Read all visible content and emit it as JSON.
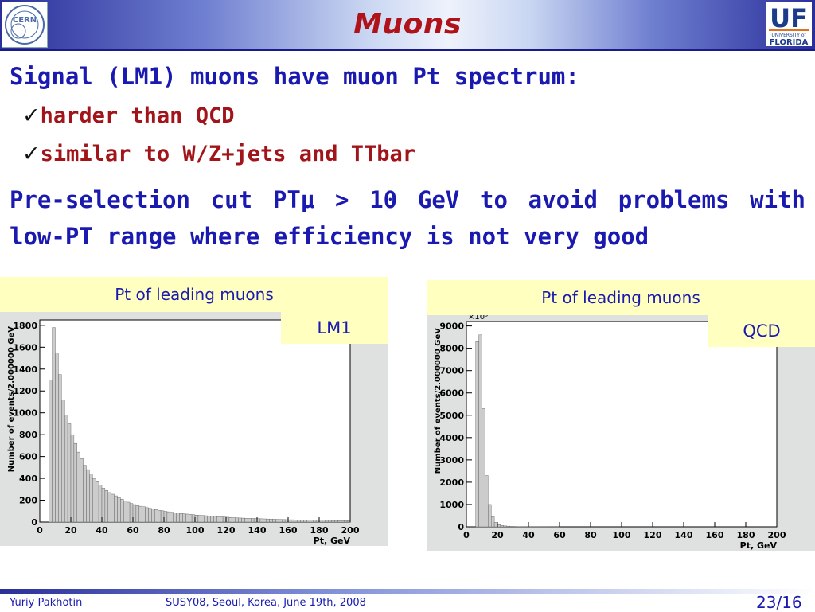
{
  "slide": {
    "title": "Muons",
    "line1": "Signal (LM1) muons have muon Pt spectrum:",
    "bullet1": "harder than QCD",
    "bullet2": "similar to W/Z+jets and TTbar",
    "paragraph": "Pre-selection cut PTμ > 10 GeV to avoid problems with low-PT range where efficiency is not very good",
    "check_glyph": "✓"
  },
  "logos": {
    "left": "CERN",
    "right_main": "UF",
    "right_sub1": "UNIVERSITY of",
    "right_sub2": "FLORIDA"
  },
  "footer": {
    "author": "Yuriy Pakhotin",
    "conference": "SUSY08, Seoul, Korea, June 19th, 2008",
    "page": "23/16"
  },
  "colors": {
    "title": "#b0121a",
    "text_blue": "#1a1ab0",
    "highlight": "#ffffc0",
    "plot_bg": "#dfe0e0",
    "hist_fill": "#cccccc"
  },
  "chart_data": [
    {
      "type": "bar",
      "panel_title": "Pt of leading muons",
      "tag": "LM1",
      "xlabel": "Pt, GeV",
      "ylabel": "Number of events/2.000000 GeV",
      "xlim": [
        0,
        200
      ],
      "ylim": [
        0,
        1850
      ],
      "xticks": [
        0,
        20,
        40,
        60,
        80,
        100,
        120,
        140,
        160,
        180,
        200
      ],
      "yticks": [
        0,
        200,
        400,
        600,
        800,
        1000,
        1200,
        1400,
        1600,
        1800
      ],
      "ytick_labels": [
        "0",
        "200",
        "400",
        "600",
        "800",
        "1000",
        "1200",
        "1400",
        "1600",
        "1800"
      ],
      "bin_width": 2,
      "values": [
        0,
        0,
        0,
        1300,
        1780,
        1550,
        1350,
        1120,
        980,
        900,
        800,
        720,
        640,
        580,
        520,
        480,
        440,
        400,
        370,
        340,
        310,
        290,
        270,
        255,
        240,
        225,
        210,
        195,
        182,
        170,
        160,
        152,
        145,
        140,
        132,
        126,
        120,
        114,
        108,
        103,
        98,
        94,
        90,
        86,
        82,
        79,
        76,
        73,
        70,
        67,
        64,
        62,
        60,
        58,
        56,
        54,
        52,
        50,
        48,
        46,
        44,
        42,
        40,
        38,
        37,
        36,
        35,
        34,
        33,
        32,
        31,
        30,
        29,
        28,
        27,
        26,
        25,
        24,
        23,
        22,
        21,
        21,
        20,
        20,
        19,
        19,
        18,
        18,
        17,
        17,
        16,
        16,
        15,
        15,
        14,
        14,
        13,
        13,
        12,
        12
      ]
    },
    {
      "type": "bar",
      "panel_title": "Pt of leading muons",
      "tag": "QCD",
      "xlabel": "Pt, GeV",
      "ylabel": "Number of events/2.000000 GeV",
      "y_multiplier_label": "×10³",
      "xlim": [
        0,
        200
      ],
      "ylim": [
        0,
        9200
      ],
      "xticks": [
        0,
        20,
        40,
        60,
        80,
        100,
        120,
        140,
        160,
        180,
        200
      ],
      "yticks": [
        0,
        1000,
        2000,
        3000,
        4000,
        5000,
        6000,
        7000,
        8000,
        9000
      ],
      "ytick_labels": [
        "0",
        "1000",
        "2000",
        "3000",
        "4000",
        "5000",
        "6000",
        "7000",
        "8000",
        "9000"
      ],
      "bin_width": 2,
      "values": [
        0,
        0,
        0,
        8300,
        8600,
        5300,
        2300,
        1000,
        450,
        200,
        100,
        60,
        40,
        30,
        20,
        15,
        10,
        8,
        6,
        5,
        4,
        3,
        3,
        2,
        2,
        2,
        1,
        1,
        1,
        1
      ]
    }
  ]
}
